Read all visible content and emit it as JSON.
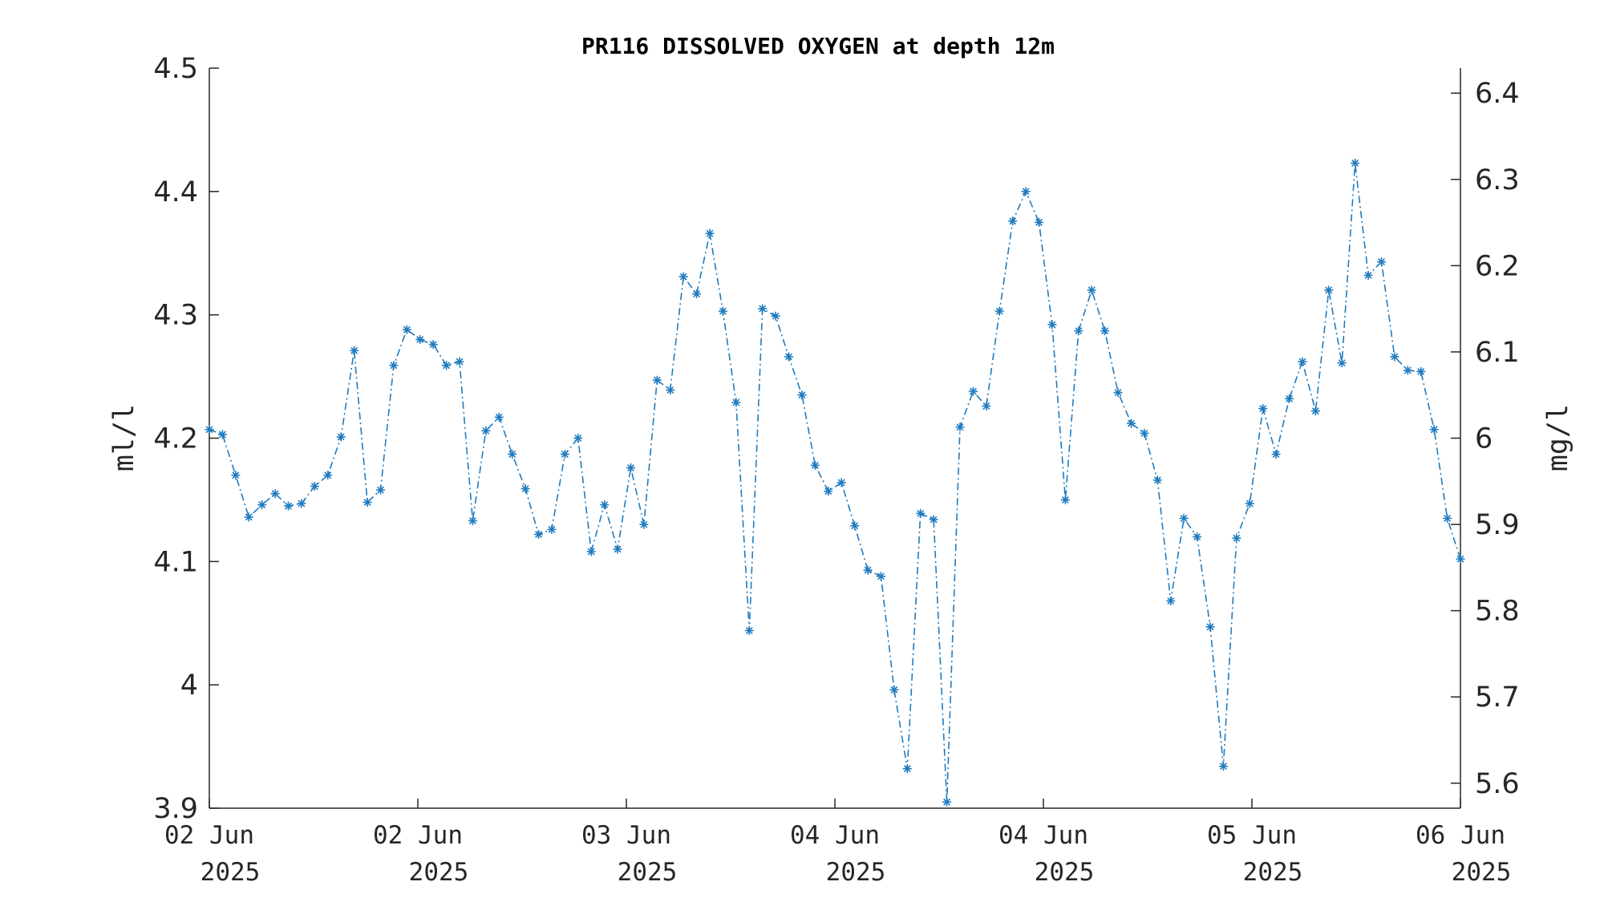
{
  "chart_data": {
    "type": "line",
    "title": "PR116 DISSOLVED OXYGEN at depth 12m",
    "ylabel": "ml/l",
    "y2label": "mg/l",
    "ylim": [
      3.9,
      4.5
    ],
    "yticks": [
      "3.9",
      "4",
      "4.1",
      "4.2",
      "4.3",
      "4.4",
      "4.5"
    ],
    "y2lim": [
      5.571,
      6.429
    ],
    "y2ticks": [
      "5.6",
      "5.7",
      "5.8",
      "5.9",
      "6",
      "6.1",
      "6.2",
      "6.3",
      "6.4"
    ],
    "xlim": [
      0,
      6
    ],
    "xticks": [
      {
        "label": "02 Jun",
        "year": "2025"
      },
      {
        "label": "02 Jun",
        "year": "2025"
      },
      {
        "label": "03 Jun",
        "year": "2025"
      },
      {
        "label": "04 Jun",
        "year": "2025"
      },
      {
        "label": "04 Jun",
        "year": "2025"
      },
      {
        "label": "05 Jun",
        "year": "2025"
      },
      {
        "label": "06 Jun",
        "year": "2025"
      }
    ],
    "grid": false,
    "marker": "asterisk",
    "line_style": "dash-dot",
    "color": "#1f7bbf",
    "series": [
      {
        "values": [
          4.207,
          4.203,
          4.17,
          4.136,
          4.146,
          4.155,
          4.145,
          4.147,
          4.161,
          4.17,
          4.201,
          4.271,
          4.148,
          4.158,
          4.259,
          4.288,
          4.28,
          4.276,
          4.259,
          4.262,
          4.133,
          4.206,
          4.217,
          4.187,
          4.159,
          4.122,
          4.126,
          4.187,
          4.2,
          4.108,
          4.146,
          4.11,
          4.176,
          4.13,
          4.247,
          4.239,
          4.331,
          4.317,
          4.366,
          4.303,
          4.229,
          4.044,
          4.305,
          4.299,
          4.266,
          4.235,
          4.178,
          4.157,
          4.164,
          4.129,
          4.093,
          4.088,
          3.996,
          3.932,
          4.139,
          4.134,
          3.905,
          4.209,
          4.238,
          4.226,
          4.303,
          4.376,
          4.4,
          4.375,
          4.292,
          4.15,
          4.287,
          4.32,
          4.287,
          4.237,
          4.212,
          4.204,
          4.166,
          4.068,
          4.135,
          4.12,
          4.047,
          3.934,
          4.119,
          4.147,
          4.224,
          4.187,
          4.232,
          4.262,
          4.222,
          4.32,
          4.261,
          4.423,
          4.332,
          4.343,
          4.266,
          4.255,
          4.254,
          4.207,
          4.135,
          4.102
        ]
      }
    ]
  }
}
